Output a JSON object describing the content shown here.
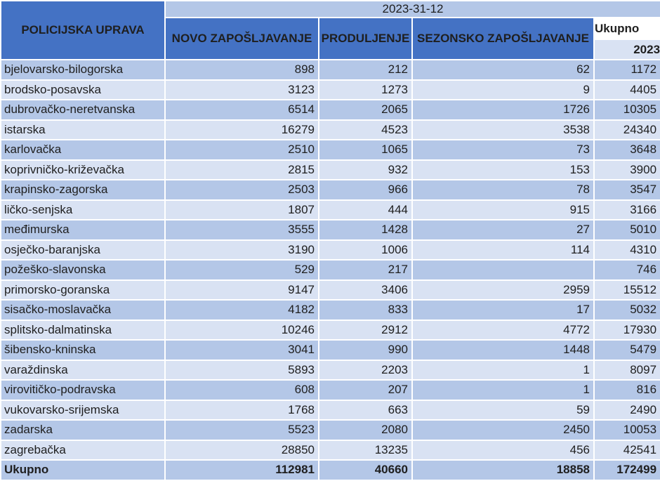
{
  "colors": {
    "header_bg": "#4472C4",
    "header_text": "#FFFFFF",
    "band_bg": "#B4C7E7",
    "row_dark_bg": "#B4C7E7",
    "row_light_bg": "#D9E2F3",
    "total_title_bg": "#FFFFFF",
    "text": "#1F1F1F"
  },
  "chart_data": {
    "type": "table",
    "corner_header": "POLICIJSKA UPRAVA",
    "date_band_header": "2023-31-12",
    "columns": [
      "NOVO ZAPOŠLJAVANJE",
      "PRODULJENJE",
      "SEZONSKO ZAPOŠLJAVANJE"
    ],
    "total_column": {
      "title": "Ukupno",
      "year": "2023"
    },
    "rows": [
      {
        "name": "bjelovarsko-bilogorska",
        "values": [
          898,
          212,
          62,
          1172
        ]
      },
      {
        "name": "brodsko-posavska",
        "values": [
          3123,
          1273,
          9,
          4405
        ]
      },
      {
        "name": "dubrovačko-neretvanska",
        "values": [
          6514,
          2065,
          1726,
          10305
        ]
      },
      {
        "name": "istarska",
        "values": [
          16279,
          4523,
          3538,
          24340
        ]
      },
      {
        "name": "karlovačka",
        "values": [
          2510,
          1065,
          73,
          3648
        ]
      },
      {
        "name": "koprivničko-križevačka",
        "values": [
          2815,
          932,
          153,
          3900
        ]
      },
      {
        "name": "krapinsko-zagorska",
        "values": [
          2503,
          966,
          78,
          3547
        ]
      },
      {
        "name": "ličko-senjska",
        "values": [
          1807,
          444,
          915,
          3166
        ]
      },
      {
        "name": "međimurska",
        "values": [
          3555,
          1428,
          27,
          5010
        ]
      },
      {
        "name": "osječko-baranjska",
        "values": [
          3190,
          1006,
          114,
          4310
        ]
      },
      {
        "name": "požeško-slavonska",
        "values": [
          529,
          217,
          "",
          746
        ]
      },
      {
        "name": "primorsko-goranska",
        "values": [
          9147,
          3406,
          2959,
          15512
        ]
      },
      {
        "name": "sisačko-moslavačka",
        "values": [
          4182,
          833,
          17,
          5032
        ]
      },
      {
        "name": "splitsko-dalmatinska",
        "values": [
          10246,
          2912,
          4772,
          17930
        ]
      },
      {
        "name": "šibensko-kninska",
        "values": [
          3041,
          990,
          1448,
          5479
        ]
      },
      {
        "name": "varaždinska",
        "values": [
          5893,
          2203,
          1,
          8097
        ]
      },
      {
        "name": "virovitičko-podravska",
        "values": [
          608,
          207,
          1,
          816
        ]
      },
      {
        "name": "vukovarsko-srijemska",
        "values": [
          1768,
          663,
          59,
          2490
        ]
      },
      {
        "name": "zadarska",
        "values": [
          5523,
          2080,
          2450,
          10053
        ]
      },
      {
        "name": "zagrebačka",
        "values": [
          28850,
          13235,
          456,
          42541
        ]
      }
    ],
    "total_row": {
      "name": "Ukupno",
      "values": [
        112981,
        40660,
        18858,
        172499
      ]
    }
  }
}
